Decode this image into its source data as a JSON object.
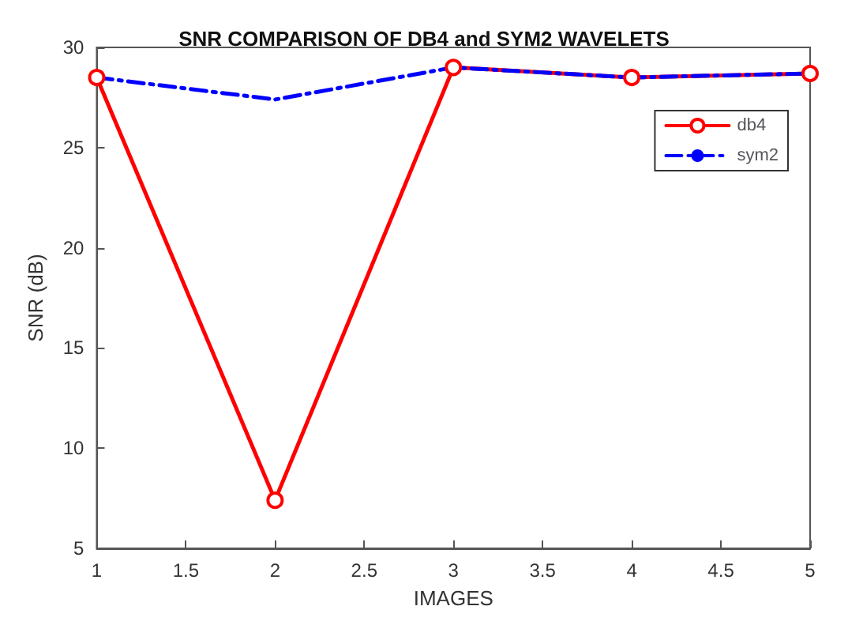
{
  "chart_data": {
    "type": "line",
    "title": "SNR COMPARISON OF DB4 and SYM2 WAVELETS",
    "xlabel": "IMAGES",
    "ylabel": "SNR (dB)",
    "x": [
      1,
      2,
      3,
      4,
      5
    ],
    "series": [
      {
        "name": "db4",
        "color": "#ff0000",
        "values": [
          28.5,
          7.4,
          29.0,
          28.5,
          28.7
        ],
        "marker": "circle",
        "line_style": "solid"
      },
      {
        "name": "sym2",
        "color": "#0000ff",
        "values": [
          28.5,
          27.4,
          29.0,
          28.5,
          28.7
        ],
        "marker": "none",
        "line_style": "dashed"
      }
    ],
    "xlim": [
      1,
      5
    ],
    "xticks": [
      1,
      1.5,
      2,
      2.5,
      3,
      3.5,
      4,
      4.5,
      5
    ],
    "ylim": [
      5,
      30
    ],
    "yticks": [
      5,
      10,
      15,
      20,
      25,
      30
    ],
    "grid": false,
    "legend": "top right"
  }
}
